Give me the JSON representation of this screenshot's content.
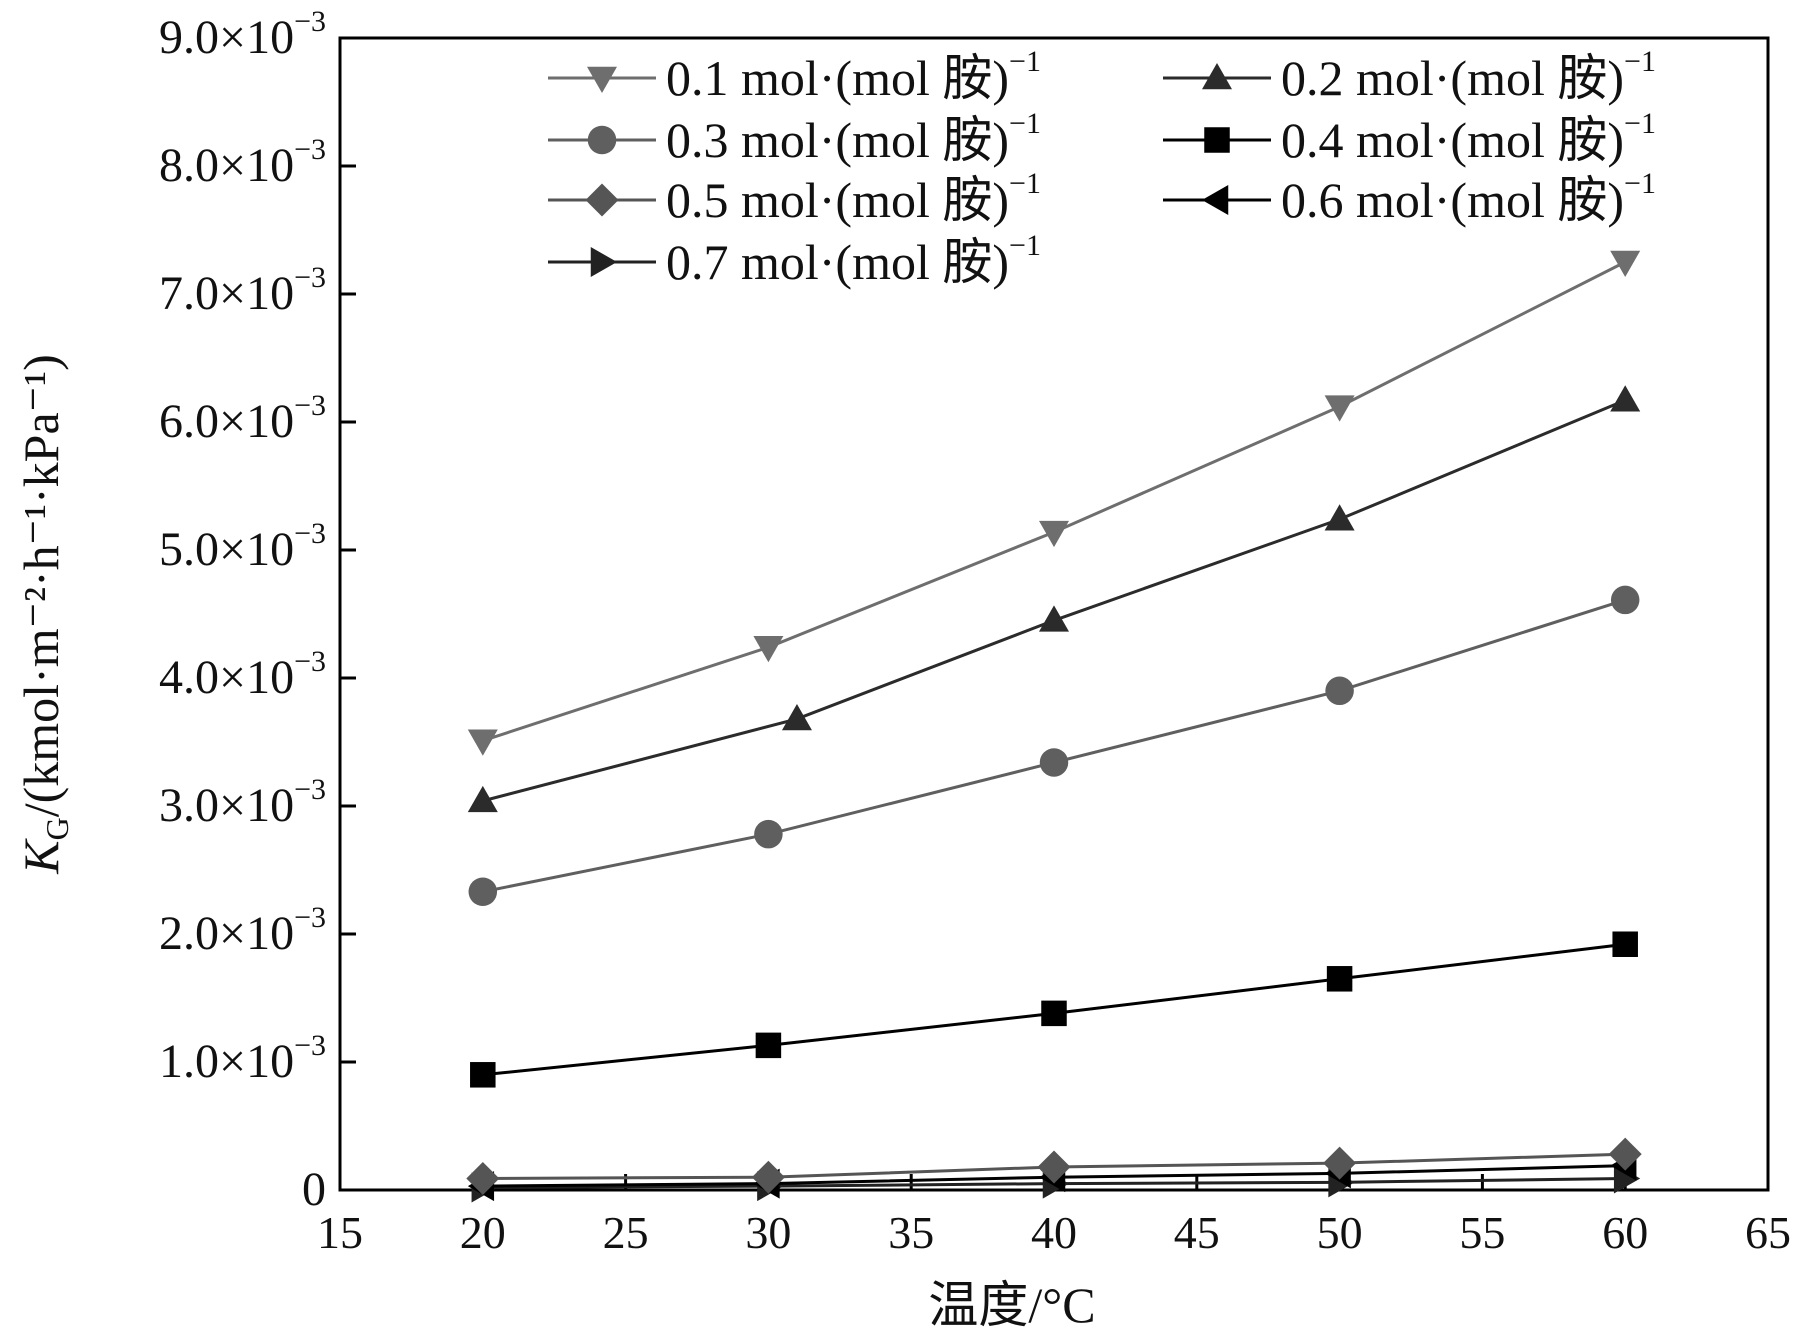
{
  "chart_data": {
    "type": "line",
    "xlabel": "温度/°C",
    "ylabel_main": "K",
    "ylabel_sub": "G",
    "ylabel_rest": "/(kmol·m⁻²·h⁻¹·kPa⁻¹)",
    "xlim": [
      15,
      65
    ],
    "ylim": [
      0,
      0.009
    ],
    "x_ticks": [
      "15",
      "20",
      "25",
      "30",
      "35",
      "40",
      "45",
      "50",
      "55",
      "60",
      "65"
    ],
    "y_ticks": [
      {
        "value": 0,
        "base": "0",
        "exp": ""
      },
      {
        "value": 0.001,
        "base": "1.0×10",
        "exp": "−3"
      },
      {
        "value": 0.002,
        "base": "2.0×10",
        "exp": "−3"
      },
      {
        "value": 0.003,
        "base": "3.0×10",
        "exp": "−3"
      },
      {
        "value": 0.004,
        "base": "4.0×10",
        "exp": "−3"
      },
      {
        "value": 0.005,
        "base": "5.0×10",
        "exp": "−3"
      },
      {
        "value": 0.006,
        "base": "6.0×10",
        "exp": "−3"
      },
      {
        "value": 0.007,
        "base": "7.0×10",
        "exp": "−3"
      },
      {
        "value": 0.008,
        "base": "8.0×10",
        "exp": "−3"
      },
      {
        "value": 0.009,
        "base": "9.0×10",
        "exp": "−3"
      }
    ],
    "legend_position": "top-right",
    "grid": false,
    "series": [
      {
        "name": "0.1 mol·(mol 胺)",
        "name_sup": "−1",
        "marker": "triangle-down",
        "color": "#6e6e6e",
        "x": [
          20,
          30,
          40,
          50,
          60
        ],
        "y": [
          0.00351,
          0.00424,
          0.00514,
          0.00612,
          0.00725
        ]
      },
      {
        "name": "0.2 mol·(mol 胺)",
        "name_sup": "−1",
        "marker": "triangle-up",
        "color": "#2b2b2b",
        "x": [
          20,
          31,
          40,
          50,
          60
        ],
        "y": [
          0.00304,
          0.00368,
          0.00445,
          0.00524,
          0.00617
        ]
      },
      {
        "name": "0.3 mol·(mol 胺)",
        "name_sup": "−1",
        "marker": "circle",
        "color": "#5f5f5f",
        "x": [
          20,
          30,
          40,
          50,
          60
        ],
        "y": [
          0.00233,
          0.00278,
          0.00334,
          0.0039,
          0.00461
        ]
      },
      {
        "name": "0.4 mol·(mol 胺)",
        "name_sup": "−1",
        "marker": "square",
        "color": "#000000",
        "x": [
          20,
          30,
          40,
          50,
          60
        ],
        "y": [
          0.0009,
          0.00113,
          0.00138,
          0.00165,
          0.00192
        ]
      },
      {
        "name": "0.5 mol·(mol 胺)",
        "name_sup": "−1",
        "marker": "diamond",
        "color": "#555555",
        "x": [
          20,
          30,
          40,
          50,
          60
        ],
        "y": [
          9e-05,
          0.0001,
          0.00018,
          0.00021,
          0.00028
        ]
      },
      {
        "name": "0.6 mol·(mol 胺)",
        "name_sup": "−1",
        "marker": "triangle-left",
        "color": "#000000",
        "x": [
          20,
          30,
          40,
          50,
          60
        ],
        "y": [
          3e-05,
          5e-05,
          0.0001,
          0.00013,
          0.00019
        ]
      },
      {
        "name": "0.7 mol·(mol 胺)",
        "name_sup": "−1",
        "marker": "triangle-right",
        "color": "#222222",
        "x": [
          20,
          30,
          40,
          50,
          60
        ],
        "y": [
          2e-05,
          3e-05,
          5e-05,
          6e-05,
          9e-05
        ]
      }
    ]
  }
}
